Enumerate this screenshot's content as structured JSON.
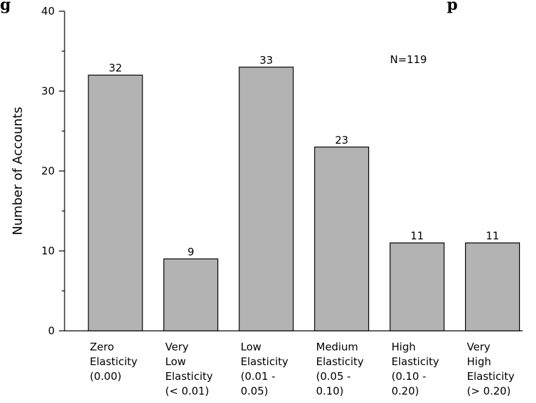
{
  "chart_data": {
    "type": "bar",
    "title_fragment_left": "g",
    "title_fragment_right": "p",
    "ylabel": "Number of Accounts",
    "ylim": [
      0,
      40
    ],
    "yticks": [
      0,
      10,
      20,
      30,
      40
    ],
    "annotation": "N=119",
    "categories": [
      [
        "Zero",
        "Elasticity",
        "(0.00)"
      ],
      [
        "Very",
        "Low",
        "Elasticity",
        "(< 0.01)"
      ],
      [
        "Low",
        "Elasticity",
        "(0.01 -",
        "0.05)"
      ],
      [
        "Medium",
        "Elasticity",
        "(0.05 -",
        "0.10)"
      ],
      [
        "High",
        "Elasticity",
        "(0.10 -",
        "0.20)"
      ],
      [
        "Very",
        "High",
        "Elasticity",
        "(> 0.20)"
      ]
    ],
    "values": [
      32,
      9,
      33,
      23,
      11,
      11
    ],
    "bar_color": "#b3b3b3",
    "grid": false
  }
}
